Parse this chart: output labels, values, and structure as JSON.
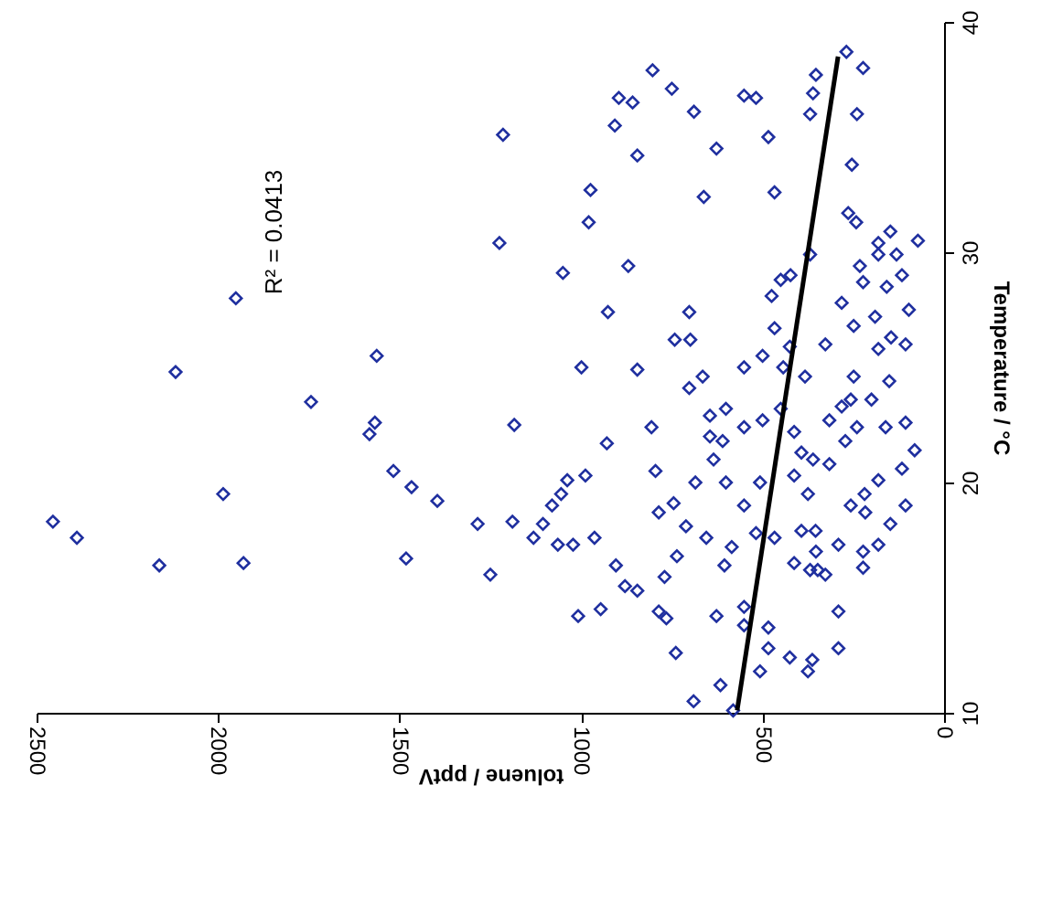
{
  "chart_data": {
    "type": "scatter",
    "xlabel": "toluene / pptV",
    "ylabel": "Temperature / °C",
    "xlim": [
      2500,
      0
    ],
    "xticks": [
      2500,
      2000,
      1500,
      1000,
      500,
      0
    ],
    "ylim": [
      10,
      40
    ],
    "yticks": [
      10,
      20,
      30,
      40
    ],
    "grid": false,
    "annotations": [
      "R² = 0.0413"
    ],
    "series": [
      {
        "marker": "diamond",
        "color": "#1f2f9f",
        "x": [
          1215,
          1225,
          1951,
          1563,
          2117,
          1744,
          1568,
          1583,
          1184,
          1517,
          1467,
          1396,
          1986,
          2455,
          2389,
          2162,
          1930,
          1482,
          1285,
          1189,
          1250,
          803,
          750,
          896,
          858,
          907,
          689,
          845,
          627,
          974,
          662,
          979,
          870,
          1050,
          926,
          999,
          845,
          702,
          742,
          699,
          806,
          929,
          795,
          988,
          1038,
          1055,
          1080,
          1105,
          1131,
          1064,
          1022,
          963,
          904,
          879,
          845,
          1008,
          946,
          786,
          765,
          739,
          690,
          581,
          616,
          786,
          745,
          711,
          770,
          736,
          655,
          605,
          585,
          702,
          665,
          601,
          645,
          610,
          645,
          635,
          685,
          601,
          551,
          500,
          551,
          500,
          551,
          507,
          518,
          467,
          627,
          551,
          551,
          484,
          484,
          507,
          425,
          375,
          363,
          291,
          291,
          551,
          518,
          484,
          467,
          353,
          361,
          369,
          269,
          223,
          240,
          254,
          264,
          242,
          450,
          475,
          423,
          369,
          467,
          425,
          443,
          383,
          450,
          413,
          393,
          361,
          316,
          375,
          413,
          393,
          413,
          369,
          348,
          354,
          291,
          257,
          217,
          219,
          181,
          116,
          81,
          106,
          161,
          240,
          272,
          316,
          249,
          257,
          200,
          151,
          181,
          146,
          106,
          249,
          190,
          97,
          282,
          223,
          158,
          116,
          232,
          181,
          131,
          72,
          148,
          181,
          106,
          148,
          181,
          223,
          223,
          327,
          353,
          282,
          327
        ],
        "values": [
          35.1,
          30.4,
          28.0,
          25.5,
          24.8,
          23.5,
          22.6,
          22.1,
          22.5,
          20.5,
          19.8,
          19.2,
          19.5,
          18.3,
          17.6,
          16.4,
          16.5,
          16.7,
          18.2,
          18.3,
          16.0,
          37.9,
          37.1,
          36.7,
          36.5,
          35.5,
          36.1,
          34.2,
          34.5,
          32.7,
          32.4,
          31.3,
          29.4,
          29.1,
          27.4,
          25.0,
          24.9,
          27.4,
          26.2,
          26.2,
          22.4,
          21.7,
          20.5,
          20.3,
          20.1,
          19.5,
          19.0,
          18.2,
          17.6,
          17.3,
          17.3,
          17.6,
          16.4,
          15.5,
          15.3,
          14.2,
          14.5,
          14.4,
          14.1,
          12.6,
          10.5,
          10.1,
          11.2,
          18.7,
          19.1,
          18.1,
          15.9,
          16.8,
          17.6,
          16.4,
          17.2,
          24.1,
          24.6,
          23.2,
          22.9,
          21.8,
          22.0,
          21.0,
          20.0,
          20.0,
          25.0,
          25.5,
          22.4,
          22.7,
          19.0,
          20.0,
          17.8,
          17.6,
          14.2,
          14.6,
          13.8,
          13.7,
          12.8,
          11.8,
          12.4,
          11.8,
          12.3,
          12.8,
          14.4,
          36.8,
          36.7,
          35.0,
          32.6,
          37.7,
          36.9,
          36.0,
          38.7,
          38.0,
          36.0,
          33.8,
          31.7,
          31.3,
          28.8,
          28.1,
          29.0,
          29.9,
          26.7,
          25.9,
          25.0,
          24.6,
          23.2,
          22.2,
          21.3,
          21.0,
          20.8,
          19.5,
          20.3,
          17.9,
          16.5,
          16.2,
          16.2,
          17.9,
          17.3,
          19.0,
          18.7,
          19.5,
          20.1,
          20.6,
          21.4,
          22.6,
          22.4,
          22.4,
          21.8,
          22.7,
          24.6,
          23.6,
          23.6,
          24.4,
          25.8,
          26.3,
          26.0,
          26.8,
          27.2,
          27.5,
          27.8,
          28.7,
          28.5,
          29.0,
          29.4,
          29.9,
          29.9,
          30.5,
          30.9,
          30.4,
          19.0,
          18.2,
          17.3,
          17.0,
          16.3,
          16.0,
          17.0,
          23.3,
          26.0
        ]
      },
      {
        "type": "line",
        "line_style": "solid",
        "color": "#000000",
        "x": [
          570,
          292
        ],
        "values": [
          10.1,
          38.5
        ]
      }
    ]
  }
}
